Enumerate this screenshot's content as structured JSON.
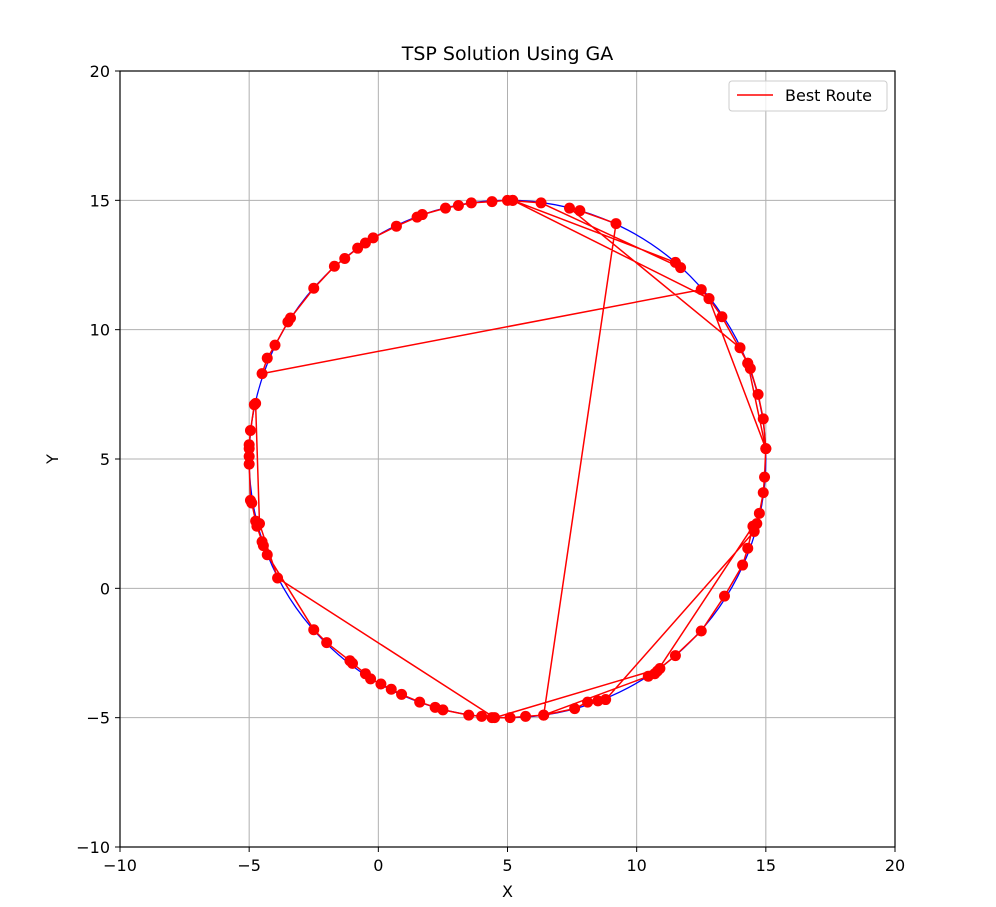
{
  "chart_data": {
    "type": "line",
    "title": "TSP Solution Using GA",
    "xlabel": "X",
    "ylabel": "Y",
    "xlim": [
      -10,
      20
    ],
    "ylim": [
      -10,
      20
    ],
    "xticks": [
      -10,
      -5,
      0,
      5,
      10,
      15,
      20
    ],
    "yticks": [
      -10,
      -5,
      0,
      5,
      10,
      15,
      20
    ],
    "xtick_labels": [
      "−10",
      "−5",
      "0",
      "5",
      "10",
      "15",
      "20"
    ],
    "ytick_labels": [
      "−10",
      "−5",
      "0",
      "5",
      "10",
      "15",
      "20"
    ],
    "grid": true,
    "legend_position": "upper-right",
    "colors": {
      "circle": "#0000ff",
      "route": "#ff0000",
      "points": "#ff0000",
      "grid": "#b0b0b0"
    },
    "reference_circle": {
      "center": [
        5,
        5
      ],
      "radius": 10
    },
    "series": [
      {
        "name": "Best Route",
        "marker": "o",
        "points": [
          [
            5.2,
            15.0
          ],
          [
            11.5,
            12.6
          ],
          [
            11.7,
            12.4
          ],
          [
            6.3,
            14.9
          ],
          [
            5.0,
            15.0
          ],
          [
            4.4,
            14.95
          ],
          [
            3.6,
            14.9
          ],
          [
            3.1,
            14.8
          ],
          [
            2.6,
            14.7
          ],
          [
            1.7,
            14.45
          ],
          [
            1.5,
            14.35
          ],
          [
            0.7,
            14.0
          ],
          [
            -0.2,
            13.55
          ],
          [
            -0.5,
            13.35
          ],
          [
            -0.8,
            13.15
          ],
          [
            -1.3,
            12.75
          ],
          [
            -1.7,
            12.45
          ],
          [
            -2.5,
            11.6
          ],
          [
            -3.4,
            10.45
          ],
          [
            -3.5,
            10.3
          ],
          [
            -4.0,
            9.4
          ],
          [
            -4.3,
            8.9
          ],
          [
            -4.5,
            8.3
          ],
          [
            12.5,
            11.55
          ],
          [
            12.8,
            11.2
          ],
          [
            13.3,
            10.5
          ],
          [
            14.3,
            8.7
          ],
          [
            14.4,
            8.5
          ],
          [
            14.7,
            7.5
          ],
          [
            14.9,
            6.55
          ],
          [
            15.0,
            5.4
          ],
          [
            14.95,
            4.3
          ],
          [
            14.9,
            3.7
          ],
          [
            14.75,
            2.9
          ],
          [
            14.65,
            2.5
          ],
          [
            14.55,
            2.2
          ],
          [
            8.8,
            -4.3
          ],
          [
            8.5,
            -4.35
          ],
          [
            8.1,
            -4.4
          ],
          [
            7.6,
            -4.65
          ],
          [
            6.4,
            -4.9
          ],
          [
            5.7,
            -4.95
          ],
          [
            5.1,
            -5.0
          ],
          [
            4.4,
            -5.0
          ],
          [
            4.0,
            -4.95
          ],
          [
            3.5,
            -4.9
          ],
          [
            2.5,
            -4.7
          ],
          [
            2.2,
            -4.6
          ],
          [
            1.6,
            -4.4
          ],
          [
            0.9,
            -4.1
          ],
          [
            0.5,
            -3.9
          ],
          [
            0.1,
            -3.7
          ],
          [
            -0.3,
            -3.5
          ],
          [
            -0.5,
            -3.3
          ],
          [
            -1.0,
            -2.9
          ],
          [
            -1.1,
            -2.8
          ],
          [
            -2.0,
            -2.1
          ],
          [
            -2.5,
            -1.6
          ],
          [
            -4.3,
            1.3
          ],
          [
            -4.45,
            1.65
          ],
          [
            -4.5,
            1.8
          ],
          [
            -4.7,
            2.4
          ],
          [
            -4.75,
            2.6
          ],
          [
            -4.9,
            3.3
          ],
          [
            -4.95,
            3.4
          ],
          [
            -5.0,
            4.8
          ],
          [
            -5.0,
            5.1
          ],
          [
            -5.0,
            5.4
          ],
          [
            -5.0,
            5.55
          ],
          [
            -4.95,
            6.1
          ],
          [
            -4.8,
            7.1
          ],
          [
            -4.75,
            7.15
          ],
          [
            -4.6,
            2.5
          ],
          [
            -3.9,
            0.4
          ],
          [
            4.5,
            -5.0
          ],
          [
            10.9,
            -3.1
          ],
          [
            11.5,
            -2.6
          ],
          [
            12.5,
            -1.65
          ],
          [
            13.4,
            -0.3
          ],
          [
            14.1,
            0.9
          ],
          [
            14.3,
            1.55
          ],
          [
            14.5,
            2.4
          ],
          [
            10.8,
            -3.2
          ],
          [
            10.7,
            -3.3
          ],
          [
            10.45,
            -3.4
          ],
          [
            6.4,
            -4.9
          ],
          [
            9.2,
            14.1
          ],
          [
            7.8,
            14.6
          ],
          [
            7.4,
            14.7
          ],
          [
            14.0,
            9.3
          ],
          [
            14.3,
            8.7
          ],
          [
            15.0,
            5.4
          ],
          [
            12.8,
            11.2
          ],
          [
            5.2,
            15.0
          ]
        ]
      }
    ]
  }
}
